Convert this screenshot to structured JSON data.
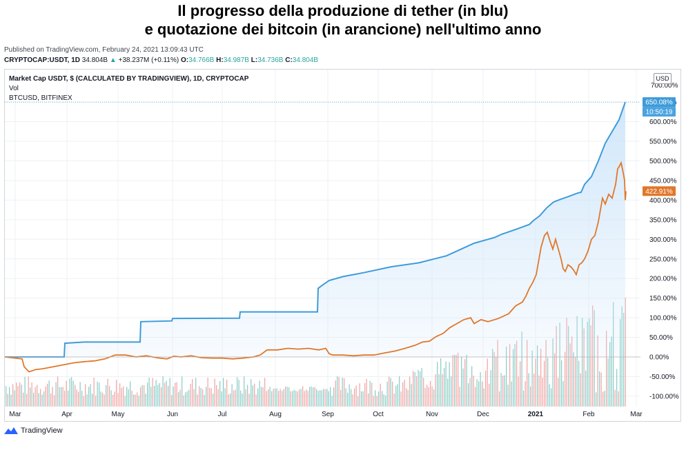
{
  "title_line1": "Il progresso della produzione di tether (in blu)",
  "title_line2": "e quotazione dei bitcoin (in arancione) nell'ultimo anno",
  "published": "Published on TradingView.com, February 24, 2021 13:09:43 UTC",
  "symbol_bar": {
    "symbol": "CRYPTOCAP:USDT, 1D",
    "last": "34.804B",
    "change": "+38.237M (+0.11%)",
    "open_label": "O:",
    "open": "34.766B",
    "high_label": "H:",
    "high": "34.987B",
    "low_label": "L:",
    "low": "34.736B",
    "close_label": "C:",
    "close": "34.804B"
  },
  "legend": {
    "main": "Market Cap USDT, $ (CALCULATED BY TRADINGVIEW), 1D, CRYPTOCAP",
    "vol": "Vol",
    "compare": "BTCUSD, BITFINEX"
  },
  "currency_label": "USD",
  "brand": "TradingView",
  "colors": {
    "usdt": "#3d9bd9",
    "btc": "#e0772a",
    "vol_up": "#8fcfc8",
    "vol_down": "#f2a8a8",
    "fill": "#cfe6fa",
    "grid": "#eef0f3"
  },
  "chart_data": {
    "type": "line",
    "x_tick_labels": [
      "Mar",
      "Apr",
      "May",
      "Jun",
      "Jul",
      "Aug",
      "Sep",
      "Oct",
      "Nov",
      "Dec",
      "2021",
      "Feb",
      "Mar"
    ],
    "y_tick_labels": [
      "650.00%",
      "600.00%",
      "550.00%",
      "500.00%",
      "450.00%",
      "400.00%",
      "350.00%",
      "300.00%",
      "250.00%",
      "200.00%",
      "150.00%",
      "100.00%",
      "50.00%",
      "0.00%",
      "-50.00%",
      "-100.00%"
    ],
    "y_axis_partial": "700.00%",
    "ylim": [
      -100,
      700
    ],
    "last_value_labels": {
      "usdt": "650.08%",
      "countdown": "10:50:19",
      "btc": "422.91%"
    },
    "series": [
      {
        "name": "Market Cap USDT",
        "color": "#3d9bd9",
        "points": [
          [
            0,
            0
          ],
          [
            86,
            0
          ],
          [
            87,
            35
          ],
          [
            115,
            38
          ],
          [
            196,
            38
          ],
          [
            197,
            90
          ],
          [
            242,
            92
          ],
          [
            243,
            98
          ],
          [
            340,
            99
          ],
          [
            341,
            115
          ],
          [
            453,
            115
          ],
          [
            454,
            175
          ],
          [
            460,
            183
          ],
          [
            470,
            195
          ],
          [
            490,
            205
          ],
          [
            520,
            215
          ],
          [
            560,
            230
          ],
          [
            600,
            240
          ],
          [
            640,
            258
          ],
          [
            680,
            290
          ],
          [
            700,
            300
          ],
          [
            710,
            305
          ],
          [
            720,
            313
          ],
          [
            740,
            325
          ],
          [
            760,
            338
          ],
          [
            766,
            348
          ],
          [
            775,
            360
          ],
          [
            785,
            380
          ],
          [
            795,
            395
          ],
          [
            805,
            402
          ],
          [
            815,
            408
          ],
          [
            830,
            418
          ],
          [
            835,
            420
          ],
          [
            840,
            440
          ],
          [
            850,
            460
          ],
          [
            860,
            500
          ],
          [
            870,
            545
          ],
          [
            880,
            575
          ],
          [
            890,
            605
          ],
          [
            895,
            630
          ],
          [
            899,
            650
          ]
        ]
      },
      {
        "name": "BTCUSD",
        "color": "#e0772a",
        "points": [
          [
            0,
            0
          ],
          [
            15,
            -3
          ],
          [
            25,
            -5
          ],
          [
            28,
            -25
          ],
          [
            35,
            -38
          ],
          [
            45,
            -32
          ],
          [
            55,
            -30
          ],
          [
            70,
            -25
          ],
          [
            85,
            -20
          ],
          [
            100,
            -15
          ],
          [
            115,
            -12
          ],
          [
            130,
            -10
          ],
          [
            145,
            -5
          ],
          [
            160,
            5
          ],
          [
            175,
            5
          ],
          [
            190,
            0
          ],
          [
            205,
            3
          ],
          [
            220,
            -2
          ],
          [
            235,
            -5
          ],
          [
            245,
            2
          ],
          [
            255,
            0
          ],
          [
            270,
            3
          ],
          [
            285,
            -2
          ],
          [
            300,
            -3
          ],
          [
            315,
            -3
          ],
          [
            330,
            -5
          ],
          [
            345,
            -3
          ],
          [
            360,
            0
          ],
          [
            370,
            5
          ],
          [
            380,
            18
          ],
          [
            395,
            18
          ],
          [
            410,
            22
          ],
          [
            425,
            20
          ],
          [
            440,
            22
          ],
          [
            455,
            18
          ],
          [
            465,
            22
          ],
          [
            470,
            8
          ],
          [
            475,
            5
          ],
          [
            490,
            5
          ],
          [
            505,
            3
          ],
          [
            520,
            5
          ],
          [
            535,
            5
          ],
          [
            550,
            10
          ],
          [
            565,
            15
          ],
          [
            580,
            22
          ],
          [
            595,
            30
          ],
          [
            605,
            38
          ],
          [
            615,
            40
          ],
          [
            625,
            52
          ],
          [
            635,
            60
          ],
          [
            645,
            75
          ],
          [
            655,
            85
          ],
          [
            665,
            95
          ],
          [
            675,
            100
          ],
          [
            680,
            85
          ],
          [
            690,
            95
          ],
          [
            700,
            90
          ],
          [
            715,
            98
          ],
          [
            730,
            110
          ],
          [
            740,
            130
          ],
          [
            750,
            140
          ],
          [
            755,
            155
          ],
          [
            760,
            175
          ],
          [
            765,
            190
          ],
          [
            770,
            210
          ],
          [
            773,
            240
          ],
          [
            777,
            280
          ],
          [
            782,
            310
          ],
          [
            786,
            318
          ],
          [
            790,
            295
          ],
          [
            794,
            275
          ],
          [
            798,
            300
          ],
          [
            802,
            275
          ],
          [
            806,
            250
          ],
          [
            809,
            225
          ],
          [
            812,
            218
          ],
          [
            816,
            235
          ],
          [
            820,
            230
          ],
          [
            824,
            222
          ],
          [
            828,
            210
          ],
          [
            832,
            235
          ],
          [
            836,
            240
          ],
          [
            840,
            250
          ],
          [
            845,
            270
          ],
          [
            850,
            300
          ],
          [
            855,
            310
          ],
          [
            860,
            345
          ],
          [
            863,
            375
          ],
          [
            866,
            405
          ],
          [
            870,
            390
          ],
          [
            875,
            415
          ],
          [
            880,
            405
          ],
          [
            885,
            440
          ],
          [
            888,
            480
          ],
          [
            890,
            485
          ],
          [
            893,
            495
          ],
          [
            896,
            470
          ],
          [
            898,
            450
          ],
          [
            899,
            400
          ],
          [
            900,
            422.91
          ]
        ]
      }
    ]
  }
}
